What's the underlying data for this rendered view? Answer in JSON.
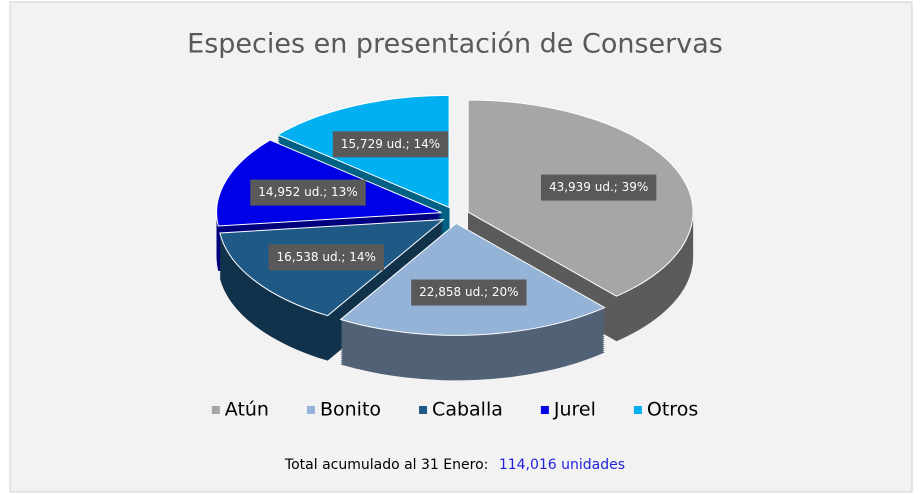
{
  "chart_data": {
    "type": "pie",
    "title": "Especies en presentación de Conservas",
    "categories": [
      "Atún",
      "Bonito",
      "Caballa",
      "Jurel",
      "Otros"
    ],
    "values": [
      43939,
      22858,
      16538,
      14952,
      15729
    ],
    "value_labels": [
      "43,939 ud.; 39%",
      "22,858 ud.; 20%",
      "16,538 ud.; 14%",
      "14,952 ud.; 13%",
      "15,729 ud.; 14%"
    ],
    "colors": [
      "#a6a6a6",
      "#95b3d7",
      "#1f5a86",
      "#0000e6",
      "#00b0f0"
    ],
    "legend": "bottom",
    "footer": {
      "label": "Total acumulado al 31 Enero:",
      "total": "114,016 unidades"
    }
  }
}
